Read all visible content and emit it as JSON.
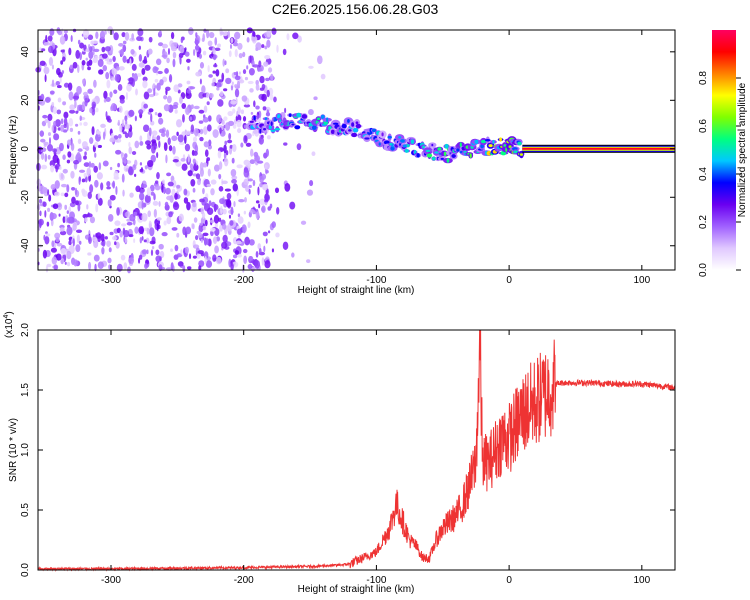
{
  "title": "C2E6.2025.156.06.28.G03",
  "chart_data": [
    {
      "type": "heatmap",
      "panel": "spectrogram",
      "xlabel": "Height of straight line (km)",
      "ylabel": "Frequency (Hz)",
      "xlim": [
        -355,
        125
      ],
      "ylim": [
        -50,
        49
      ],
      "xticks": [
        -300,
        -200,
        -100,
        0,
        100
      ],
      "yticks": [
        -40,
        -20,
        0,
        20,
        40
      ],
      "colorbar": {
        "label": "Normalized spectral amplitude",
        "range": [
          0,
          1
        ],
        "ticks": [
          0.0,
          0.2,
          0.4,
          0.6,
          0.8
        ],
        "colormap": [
          "#ffffff",
          "#e0c8ff",
          "#a060ff",
          "#6a00f0",
          "#0000ff",
          "#00c8ff",
          "#00ff80",
          "#80ff00",
          "#ffff00",
          "#ff8000",
          "#ff0000",
          "#ff0060"
        ]
      },
      "features": {
        "noise_region_x": [
          -355,
          -140
        ],
        "signal_track": [
          {
            "x": -195,
            "y": 10,
            "amp": 0.45
          },
          {
            "x": -180,
            "y": 10,
            "amp": 0.5
          },
          {
            "x": -165,
            "y": 11,
            "amp": 0.5
          },
          {
            "x": -150,
            "y": 11,
            "amp": 0.55
          },
          {
            "x": -135,
            "y": 10,
            "amp": 0.5
          },
          {
            "x": -120,
            "y": 9,
            "amp": 0.45
          },
          {
            "x": -105,
            "y": 6,
            "amp": 0.45
          },
          {
            "x": -90,
            "y": 3,
            "amp": 0.5
          },
          {
            "x": -75,
            "y": 1,
            "amp": 0.5
          },
          {
            "x": -60,
            "y": -1,
            "amp": 0.55
          },
          {
            "x": -45,
            "y": -2,
            "amp": 0.55
          },
          {
            "x": -30,
            "y": 0,
            "amp": 0.6
          },
          {
            "x": -15,
            "y": 1,
            "amp": 0.75
          },
          {
            "x": 0,
            "y": 1,
            "amp": 0.7
          },
          {
            "x": 10,
            "y": 0,
            "amp": 0.95
          },
          {
            "x": 125,
            "y": 0,
            "amp": 0.95
          }
        ]
      }
    },
    {
      "type": "line",
      "panel": "snr",
      "xlabel": "Height of straight line (km)",
      "ylabel": "SNR (10 * v/v)",
      "y_multiplier": "(x10^4)",
      "xlim": [
        -355,
        125
      ],
      "ylim": [
        0,
        2.0
      ],
      "xticks": [
        -300,
        -200,
        -100,
        0,
        100
      ],
      "yticks": [
        0.0,
        0.5,
        1.0,
        1.5,
        2.0
      ],
      "color": "#ee3333",
      "x": [
        -355,
        -300,
        -250,
        -200,
        -150,
        -130,
        -120,
        -110,
        -100,
        -95,
        -90,
        -85,
        -80,
        -75,
        -70,
        -65,
        -60,
        -55,
        -50,
        -45,
        -40,
        -35,
        -30,
        -25,
        -22,
        -20,
        -15,
        -10,
        -5,
        0,
        5,
        10,
        15,
        20,
        25,
        30,
        35,
        40,
        60,
        80,
        90,
        100,
        125
      ],
      "y": [
        0.01,
        0.01,
        0.015,
        0.02,
        0.03,
        0.04,
        0.05,
        0.1,
        0.15,
        0.25,
        0.35,
        0.55,
        0.4,
        0.25,
        0.2,
        0.1,
        0.1,
        0.25,
        0.35,
        0.4,
        0.45,
        0.55,
        0.7,
        0.9,
        1.9,
        0.9,
        0.9,
        1.0,
        1.1,
        1.1,
        1.2,
        1.3,
        1.35,
        1.4,
        1.45,
        1.5,
        1.55,
        1.56,
        1.56,
        1.55,
        1.55,
        1.55,
        1.52
      ]
    }
  ]
}
